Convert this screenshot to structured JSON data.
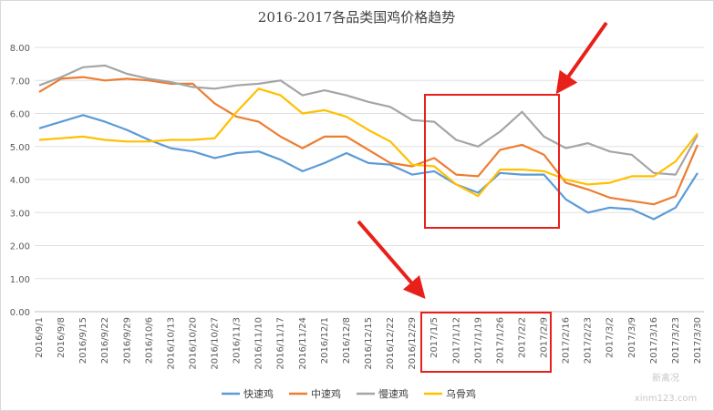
{
  "chart_data": {
    "type": "line",
    "title": "2016-2017各品类国鸡价格趋势",
    "categories": [
      "2016/9/1",
      "2016/9/8",
      "2016/9/15",
      "2016/9/22",
      "2016/9/29",
      "2016/10/6",
      "2016/10/13",
      "2016/10/20",
      "2016/10/27",
      "2016/11/3",
      "2016/11/10",
      "2016/11/17",
      "2016/11/24",
      "2016/12/1",
      "2016/12/8",
      "2016/12/15",
      "2016/12/22",
      "2016/12/29",
      "2017/1/5",
      "2017/1/12",
      "2017/1/19",
      "2017/1/26",
      "2017/2/2",
      "2017/2/9",
      "2017/2/16",
      "2017/2/23",
      "2017/3/2",
      "2017/3/9",
      "2017/3/16",
      "2017/3/23",
      "2017/3/30"
    ],
    "series": [
      {
        "name": "快速鸡",
        "color": "#5b9bd5",
        "values": [
          5.55,
          5.75,
          5.95,
          5.75,
          5.5,
          5.2,
          4.95,
          4.85,
          4.65,
          4.8,
          4.85,
          4.6,
          4.25,
          4.5,
          4.8,
          4.5,
          4.45,
          4.15,
          4.25,
          3.85,
          3.6,
          4.2,
          4.15,
          4.15,
          3.4,
          3.0,
          3.15,
          3.1,
          2.8,
          3.15,
          4.2
        ]
      },
      {
        "name": "中速鸡",
        "color": "#ed7d31",
        "values": [
          6.65,
          7.05,
          7.1,
          7.0,
          7.05,
          7.0,
          6.9,
          6.9,
          6.3,
          5.9,
          5.75,
          5.3,
          4.95,
          5.3,
          5.3,
          4.9,
          4.5,
          4.4,
          4.65,
          4.15,
          4.1,
          4.9,
          5.05,
          4.75,
          3.9,
          3.7,
          3.45,
          3.35,
          3.25,
          3.5,
          5.05
        ]
      },
      {
        "name": "慢速鸡",
        "color": "#a5a5a5",
        "values": [
          6.85,
          7.1,
          7.4,
          7.45,
          7.2,
          7.05,
          6.95,
          6.8,
          6.75,
          6.85,
          6.9,
          7.0,
          6.55,
          6.7,
          6.55,
          6.35,
          6.2,
          5.8,
          5.75,
          5.2,
          5.0,
          5.45,
          6.05,
          5.3,
          4.95,
          5.1,
          4.85,
          4.75,
          4.2,
          4.15,
          5.35
        ]
      },
      {
        "name": "乌骨鸡",
        "color": "#ffc000",
        "values": [
          5.2,
          5.25,
          5.3,
          5.2,
          5.15,
          5.15,
          5.2,
          5.2,
          5.25,
          6.05,
          6.75,
          6.55,
          6.0,
          6.1,
          5.9,
          5.5,
          5.15,
          4.45,
          4.4,
          3.85,
          3.5,
          4.3,
          4.3,
          4.25,
          4.0,
          3.85,
          3.9,
          4.1,
          4.1,
          4.55,
          5.4
        ]
      }
    ],
    "ylim": [
      0,
      8
    ],
    "yticks": [
      {
        "value": 0,
        "label": "0.00"
      },
      {
        "value": 1,
        "label": "1.00"
      },
      {
        "value": 2,
        "label": "2.00"
      },
      {
        "value": 3,
        "label": "3.00"
      },
      {
        "value": 4,
        "label": "4.00"
      },
      {
        "value": 5,
        "label": "5.00"
      },
      {
        "value": 6,
        "label": "6.00"
      },
      {
        "value": 7,
        "label": "7.00"
      },
      {
        "value": 8,
        "label": "8.00"
      }
    ],
    "grid": true,
    "legend": "bottom",
    "watermark": [
      "新禽况",
      "xinm123.com"
    ]
  }
}
